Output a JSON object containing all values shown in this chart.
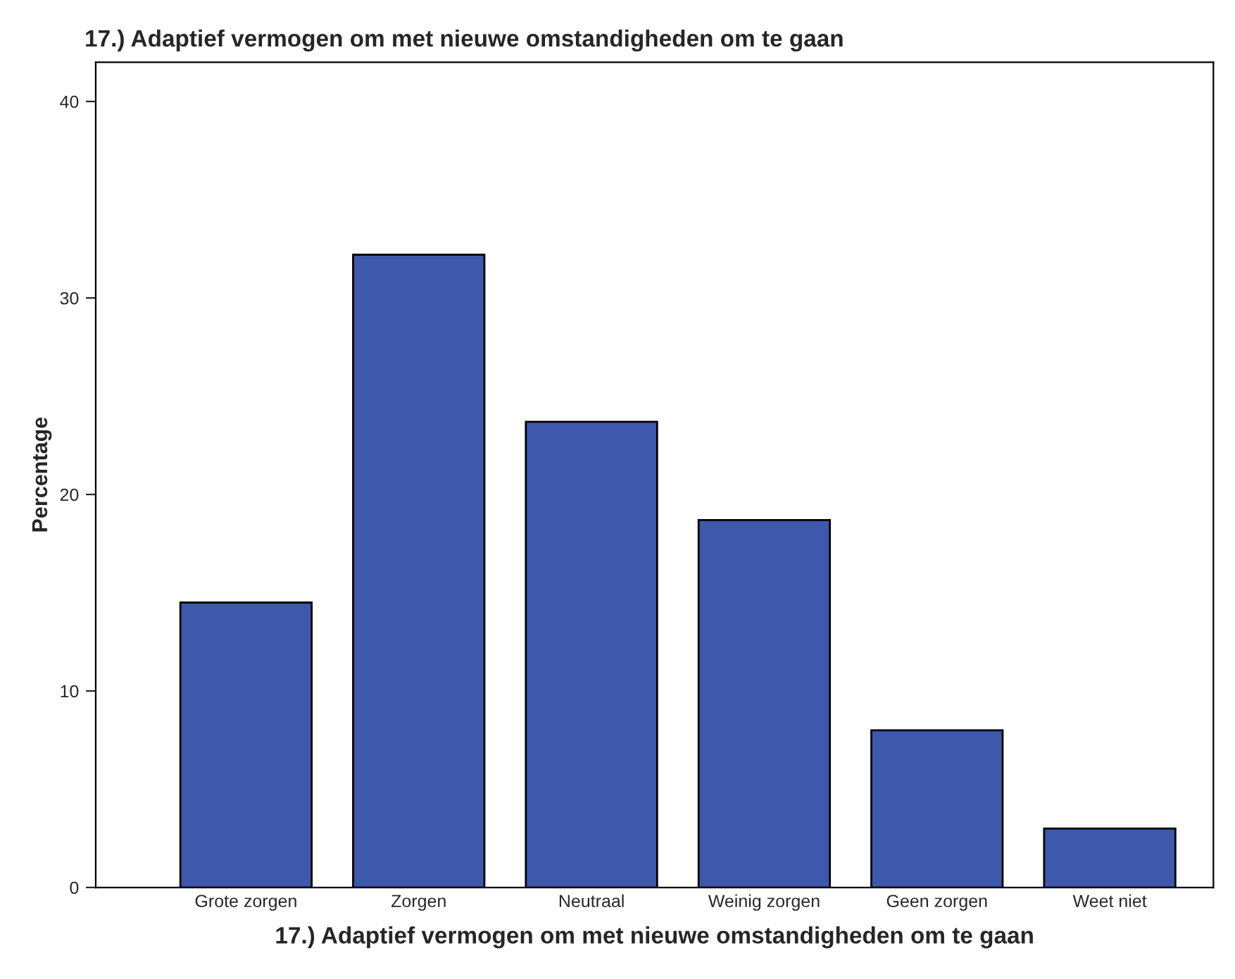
{
  "chart_data": {
    "type": "bar",
    "title": "17.) Adaptief vermogen om met nieuwe omstandigheden om te gaan",
    "xlabel": "17.) Adaptief vermogen om met nieuwe omstandigheden om te gaan",
    "ylabel": "Percentage",
    "categories": [
      "Grote zorgen",
      "Zorgen",
      "Neutraal",
      "Weinig zorgen",
      "Geen zorgen",
      "Weet niet"
    ],
    "values": [
      14.5,
      32.2,
      23.7,
      18.7,
      8.0,
      3.0
    ],
    "color": "#3e58ac",
    "ylim": [
      0,
      42
    ],
    "yticks": [
      0,
      10,
      20,
      30,
      40
    ],
    "grid": false,
    "legend": false
  }
}
